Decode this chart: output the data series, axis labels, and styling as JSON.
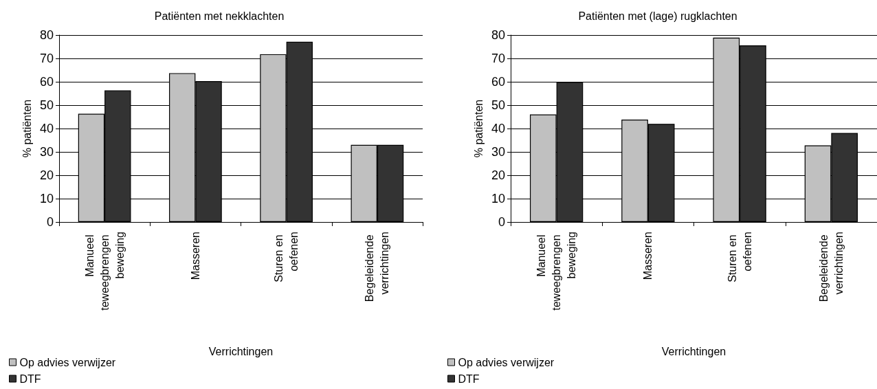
{
  "chart_data": [
    {
      "type": "bar",
      "title": "Patiënten met nekklachten",
      "xlabel": "Verrichtingen",
      "ylabel": "% patiënten",
      "categories": [
        "Manueel teweegbrengen beweging",
        "Masseren",
        "Sturen en oefenen",
        "Begeleidende verrichtingen"
      ],
      "series": [
        {
          "name": "Op advies verwijzer",
          "color": "#c0c0c0",
          "values": [
            46.3,
            63.7,
            71.8,
            33.0
          ]
        },
        {
          "name": "DTF",
          "color": "#333333",
          "values": [
            56.3,
            60.3,
            77.1,
            33.0
          ]
        }
      ],
      "ylim": [
        0,
        80
      ],
      "yticks": [
        0,
        10,
        20,
        30,
        40,
        50,
        60,
        70,
        80
      ],
      "grid": "y",
      "legend": "bottom left"
    },
    {
      "type": "bar",
      "title": "Patiënten met (lage) rugklachten",
      "xlabel": "Verrichtingen",
      "ylabel": "% patiënten",
      "categories": [
        "Manueel teweegbrengen beweging",
        "Masseren",
        "Sturen en oefenen",
        "Begeleidende verrichtingen"
      ],
      "series": [
        {
          "name": "Op advies verwijzer",
          "color": "#c0c0c0",
          "values": [
            46.0,
            43.8,
            78.9,
            32.8
          ]
        },
        {
          "name": "DTF",
          "color": "#333333",
          "values": [
            59.9,
            42.0,
            75.6,
            38.1
          ]
        }
      ],
      "ylim": [
        0,
        80
      ],
      "yticks": [
        0,
        10,
        20,
        30,
        40,
        50,
        60,
        70,
        80
      ],
      "grid": "y",
      "legend": "bottom left"
    }
  ]
}
